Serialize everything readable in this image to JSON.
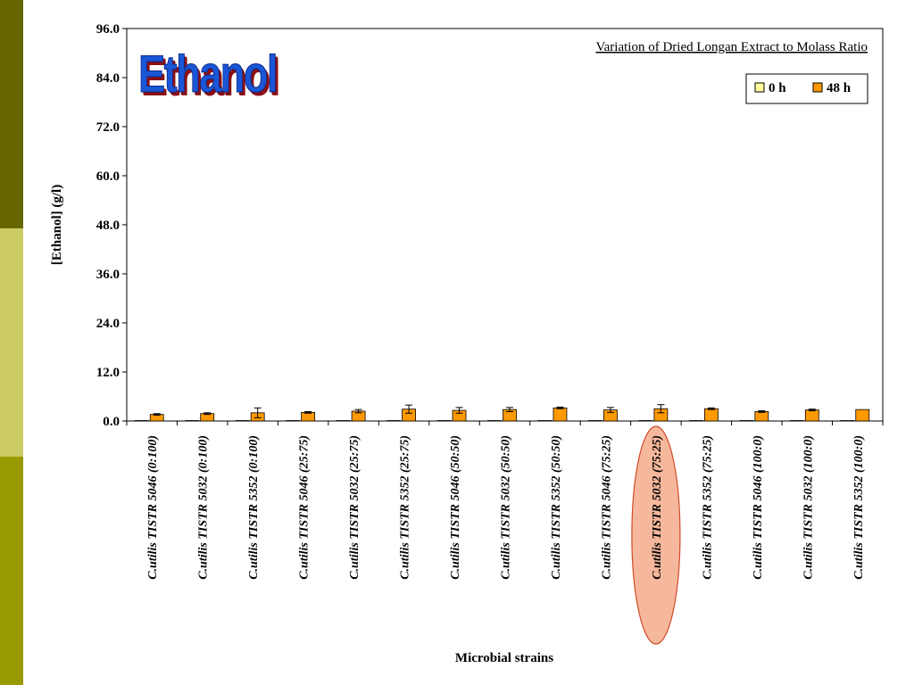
{
  "colors": {
    "stripe_top": "#666600",
    "stripe_mid": "#cccc66",
    "stripe_bottom": "#999900",
    "series_0h": "#ffff99",
    "series_48h": "#ff9900",
    "highlight_fill": "#f6b89c",
    "highlight_stroke": "#d24a2a"
  },
  "slide": {
    "title_word": "Ethanol"
  },
  "chart_data": {
    "type": "bar",
    "title": "Variation of Dried Longan Extract to Molass Ratio",
    "xlabel": "Microbial strains",
    "ylabel": "[Ethanol] (g/l)",
    "ylim": [
      0,
      96
    ],
    "yticks": [
      "0.0",
      "12.0",
      "24.0",
      "36.0",
      "48.0",
      "60.0",
      "72.0",
      "84.0",
      "96.0"
    ],
    "grid": false,
    "legend_position": "top-right",
    "highlighted_category": "C.utilis TISTR 5032 (75:25)",
    "categories": [
      "C.utilis TISTR 5046 (0:100)",
      "C.utilis TISTR 5032 (0:100)",
      "C.utilis TISTR 5352 (0:100)",
      "C.utilis TISTR 5046 (25:75)",
      "C.utilis TISTR 5032 (25:75)",
      "C.utilis TISTR 5352 (25:75)",
      "C.utilis TISTR 5046 (50:50)",
      "C.utilis TISTR 5032 (50:50)",
      "C.utilis TISTR 5352 (50:50)",
      "C.utilis TISTR 5046 (75:25)",
      "C.utilis TISTR 5032 (75:25)",
      "C.utilis TISTR 5352 (75:25)",
      "C.utilis TISTR 5046 (100:0)",
      "C.utilis TISTR 5032 (100:0)",
      "C.utilis TISTR 5352 (100:0)"
    ],
    "series": [
      {
        "name": "0 h",
        "color": "#ffff99",
        "values": [
          0.1,
          0.1,
          0.1,
          0.1,
          0.1,
          0.1,
          0.1,
          0.1,
          0.1,
          0.1,
          0.1,
          0.1,
          0.1,
          0.1,
          0.1
        ],
        "errors": [
          0,
          0,
          0,
          0,
          0,
          0,
          0,
          0,
          0,
          0,
          0,
          0,
          0,
          0,
          0
        ]
      },
      {
        "name": "48 h",
        "color": "#ff9900",
        "values": [
          1.6,
          1.8,
          2.0,
          2.1,
          2.4,
          2.9,
          2.6,
          2.8,
          3.2,
          2.7,
          3.0,
          3.0,
          2.3,
          2.7,
          2.8
        ],
        "errors": [
          0.2,
          0.2,
          1.2,
          0.2,
          0.4,
          1.0,
          0.7,
          0.5,
          0.2,
          0.6,
          1.0,
          0.2,
          0.2,
          0.2,
          0.0
        ]
      }
    ]
  }
}
